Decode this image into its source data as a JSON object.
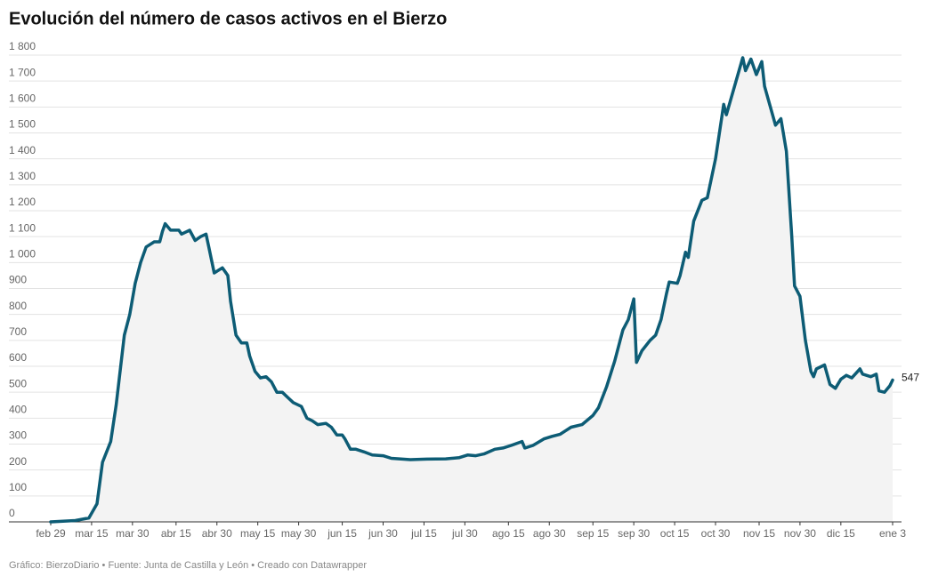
{
  "chart_data": {
    "type": "line",
    "title": "Evolución del número de casos activos en el Bierzo",
    "footer": "Gráfico: BierzoDiario • Fuente: Junta de Castilla y León • Creado con Datawrapper",
    "color": "#0d5c75",
    "area": true,
    "area_color": "#f3f3f3",
    "grid": true,
    "x": [
      0,
      9,
      14,
      17,
      19,
      22,
      24,
      27,
      29,
      31,
      33,
      35,
      38,
      40,
      41,
      42,
      44,
      47,
      48,
      51,
      53,
      55,
      57,
      58,
      60,
      63,
      65,
      66,
      68,
      70,
      72,
      73,
      75,
      77,
      79,
      81,
      83,
      85,
      87,
      89,
      92,
      94,
      96,
      98,
      101,
      103,
      105,
      107,
      108,
      110,
      112,
      115,
      118,
      122,
      125,
      132,
      138,
      145,
      150,
      153,
      156,
      159,
      163,
      166,
      169,
      173,
      174,
      177,
      181,
      184,
      187,
      191,
      195,
      199,
      201,
      204,
      207,
      210,
      212,
      214,
      215,
      217,
      220,
      222,
      224,
      226,
      227,
      230,
      231,
      233,
      234,
      236,
      239,
      241,
      244,
      247,
      248,
      251,
      254,
      255,
      257,
      259,
      261,
      262,
      266,
      268,
      270,
      272,
      273,
      275,
      277,
      279,
      280,
      281,
      284,
      286,
      288,
      290,
      292,
      294,
      297,
      298,
      301,
      303,
      304,
      306,
      308,
      309
    ],
    "values": [
      0,
      5,
      15,
      70,
      230,
      310,
      450,
      720,
      800,
      920,
      1000,
      1060,
      1080,
      1080,
      1120,
      1150,
      1125,
      1125,
      1110,
      1125,
      1085,
      1100,
      1110,
      1060,
      960,
      980,
      950,
      850,
      720,
      690,
      690,
      640,
      580,
      555,
      560,
      540,
      500,
      500,
      480,
      460,
      445,
      400,
      390,
      375,
      380,
      365,
      335,
      335,
      320,
      280,
      280,
      270,
      258,
      255,
      245,
      240,
      242,
      243,
      248,
      258,
      255,
      262,
      280,
      285,
      295,
      310,
      285,
      295,
      320,
      330,
      338,
      365,
      375,
      410,
      440,
      520,
      620,
      740,
      780,
      860,
      615,
      660,
      700,
      720,
      780,
      880,
      925,
      920,
      950,
      1040,
      1020,
      1160,
      1240,
      1250,
      1400,
      1610,
      1570,
      1680,
      1790,
      1740,
      1785,
      1725,
      1775,
      1680,
      1530,
      1555,
      1430,
      1100,
      910,
      870,
      700,
      580,
      560,
      590,
      605,
      530,
      515,
      550,
      565,
      555,
      590,
      570,
      560,
      570,
      505,
      500,
      525,
      547
    ],
    "xlim": [
      0,
      309
    ],
    "xticks": [
      {
        "value": 0,
        "label": "feb 29"
      },
      {
        "value": 15,
        "label": "mar 15"
      },
      {
        "value": 30,
        "label": "mar 30"
      },
      {
        "value": 46,
        "label": "abr 15"
      },
      {
        "value": 61,
        "label": "abr 30"
      },
      {
        "value": 76,
        "label": "may 15"
      },
      {
        "value": 91,
        "label": "may 30"
      },
      {
        "value": 107,
        "label": "jun 15"
      },
      {
        "value": 122,
        "label": "jun 30"
      },
      {
        "value": 137,
        "label": "jul 15"
      },
      {
        "value": 152,
        "label": "jul 30"
      },
      {
        "value": 168,
        "label": "ago 15"
      },
      {
        "value": 183,
        "label": "ago 30"
      },
      {
        "value": 199,
        "label": "sep 15"
      },
      {
        "value": 214,
        "label": "sep 30"
      },
      {
        "value": 229,
        "label": "oct 15"
      },
      {
        "value": 244,
        "label": "oct 30"
      },
      {
        "value": 260,
        "label": "nov 15"
      },
      {
        "value": 275,
        "label": "nov 30"
      },
      {
        "value": 290,
        "label": "dic 15"
      },
      {
        "value": 309,
        "label": "ene 3"
      }
    ],
    "ylim": [
      0,
      1800
    ],
    "yticks": [
      0,
      100,
      200,
      300,
      400,
      500,
      600,
      700,
      800,
      900,
      {
        "value": 1000,
        "label": "1 000"
      },
      {
        "value": 1100,
        "label": "1 100"
      },
      {
        "value": 1200,
        "label": "1 200"
      },
      {
        "value": 1300,
        "label": "1 300"
      },
      {
        "value": 1400,
        "label": "1 400"
      },
      {
        "value": 1500,
        "label": "1 500"
      },
      {
        "value": 1600,
        "label": "1 600"
      },
      {
        "value": 1700,
        "label": "1 700"
      },
      {
        "value": 1800,
        "label": "1 800"
      }
    ]
  }
}
